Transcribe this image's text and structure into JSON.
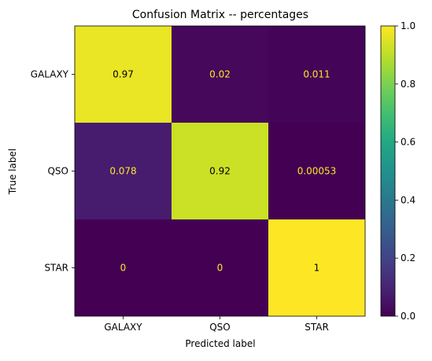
{
  "chart_data": {
    "type": "heatmap",
    "title": "Confusion Matrix -- percentages",
    "xlabel": "Predicted label",
    "ylabel": "True label",
    "x_categories": [
      "GALAXY",
      "QSO",
      "STAR"
    ],
    "y_categories": [
      "GALAXY",
      "QSO",
      "STAR"
    ],
    "values": [
      [
        0.97,
        0.02,
        0.011
      ],
      [
        0.078,
        0.92,
        0.00053
      ],
      [
        0,
        0,
        1
      ]
    ],
    "cell_labels": [
      [
        "0.97",
        "0.02",
        "0.011"
      ],
      [
        "0.078",
        "0.92",
        "0.00053"
      ],
      [
        "0",
        "0",
        "1"
      ]
    ],
    "colormap": "viridis",
    "colorbar": {
      "range": [
        0,
        1
      ],
      "ticks": [
        "0.0",
        "0.2",
        "0.4",
        "0.6",
        "0.8",
        "1.0"
      ]
    },
    "text_colors": {
      "dark": "#000000",
      "light": "#fde725"
    }
  }
}
